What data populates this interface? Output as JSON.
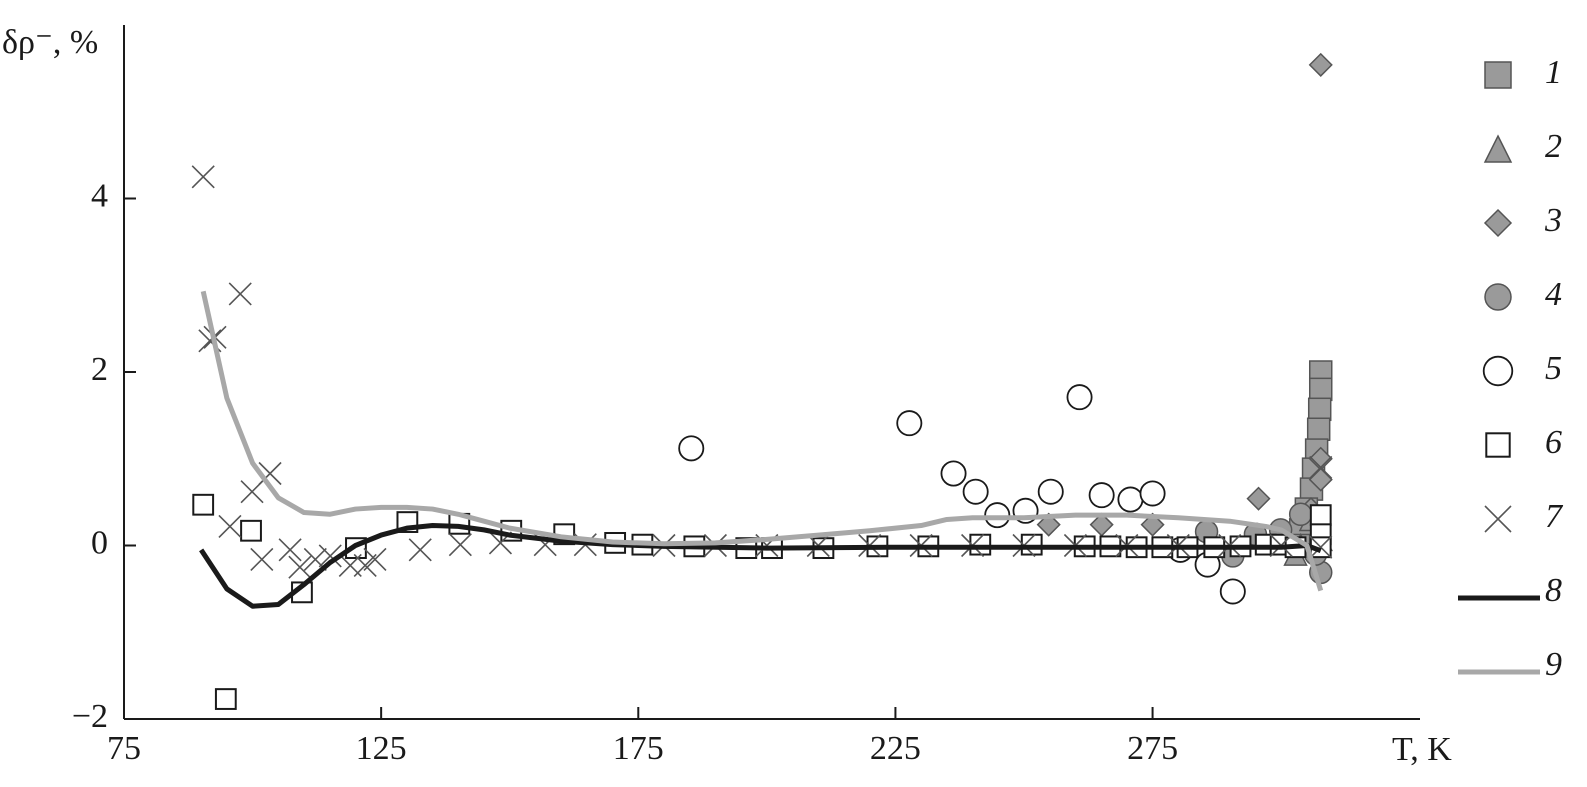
{
  "chart_data": {
    "type": "scatter",
    "x_label": "T, K",
    "y_label": "δρ⁻, %",
    "xlim": [
      75,
      327
    ],
    "ylim": [
      -2,
      6
    ],
    "xticks": [
      75,
      125,
      175,
      225,
      275
    ],
    "yticks": [
      {
        "value": -2,
        "label": "−2"
      },
      0,
      2,
      4
    ],
    "legend": "right",
    "series": [
      {
        "name": "1",
        "marker": "square",
        "color": "#9a9a9a",
        "x": [
          307.7,
          307.7,
          307.5,
          307.3,
          306.9,
          306.3,
          305.9,
          304.9,
          303.8,
          303.4
        ],
        "values": [
          2.0,
          1.8,
          1.57,
          1.34,
          1.1,
          0.88,
          0.65,
          0.42,
          0.18,
          0.0
        ]
      },
      {
        "name": "2",
        "marker": "triangle",
        "color": "#9a9a9a",
        "x": [
          302.8,
          303.8,
          305.8,
          307.7
        ],
        "values": [
          -0.1,
          0.0,
          0.3,
          0.07
        ]
      },
      {
        "name": "3",
        "marker": "diamond",
        "color": "#9a9a9a",
        "x": [
          307.7,
          254.8,
          265.1,
          275.0,
          295.6,
          307.7,
          307.7,
          305.8
        ],
        "values": [
          5.54,
          0.24,
          0.24,
          0.24,
          0.54,
          1.0,
          0.76,
          0.42
        ]
      },
      {
        "name": "4",
        "marker": "circle",
        "color": "#9a9a9a",
        "x": [
          285.5,
          290.6,
          295.0,
          299.9,
          303.8,
          307.7,
          306.7
        ],
        "values": [
          0.16,
          -0.12,
          0.13,
          0.18,
          0.36,
          -0.31,
          -0.1
        ]
      },
      {
        "name": "5",
        "marker": "open-circle",
        "color": "#ffffff",
        "x": [
          185.3,
          227.7,
          236.3,
          240.6,
          244.8,
          250.3,
          255.2,
          260.8,
          265.1,
          270.7,
          275.0,
          280.4,
          285.7,
          290.6
        ],
        "values": [
          1.12,
          1.41,
          0.83,
          0.62,
          0.35,
          0.4,
          0.62,
          1.71,
          0.58,
          0.53,
          0.6,
          -0.05,
          -0.22,
          -0.53
        ]
      },
      {
        "name": "6",
        "marker": "open-square",
        "color": "#ffffff",
        "x": [
          90.4,
          94.8,
          99.7,
          109.6,
          120.1,
          130.1,
          140.2,
          150.3,
          160.6,
          170.5,
          175.8,
          185.9,
          196.0,
          201.0,
          211.0,
          221.5,
          231.4,
          241.5,
          251.5,
          261.8,
          266.8,
          271.9,
          276.9,
          281.8,
          287.0,
          292.1,
          297.0,
          299.9,
          302.8,
          307.7,
          307.7,
          307.7
        ],
        "values": [
          0.47,
          -1.77,
          0.17,
          -0.54,
          -0.03,
          0.27,
          0.25,
          0.17,
          0.13,
          0.03,
          0.01,
          -0.01,
          -0.03,
          -0.03,
          -0.03,
          -0.01,
          -0.01,
          0.01,
          0.01,
          -0.01,
          -0.01,
          -0.02,
          -0.02,
          -0.02,
          -0.02,
          -0.01,
          0.01,
          0.01,
          -0.02,
          0.35,
          0.13,
          -0.02
        ]
      },
      {
        "name": "7",
        "marker": "x",
        "color": "#555555",
        "x": [
          90.4,
          97.6,
          91.7,
          92.7,
          99.9,
          103.4,
          95.6,
          101.8,
          107.3,
          109.2,
          112.2,
          115.1,
          119.0,
          121.9,
          123.8,
          132.6,
          140.4,
          148.2,
          156.9,
          164.7,
          180,
          190,
          200,
          210,
          220,
          230,
          240,
          250,
          260,
          270,
          280,
          290,
          300,
          307.7,
          307.7
        ],
        "values": [
          4.25,
          2.9,
          2.36,
          2.4,
          0.62,
          0.83,
          0.22,
          -0.16,
          -0.05,
          -0.25,
          -0.16,
          -0.12,
          -0.23,
          -0.23,
          -0.16,
          -0.05,
          0.01,
          0.03,
          0.01,
          0.01,
          0,
          0,
          0,
          0,
          0,
          0,
          0,
          0,
          0,
          0,
          0,
          0,
          0,
          -0.02,
          0.9
        ]
      },
      {
        "name": "8",
        "marker": "line",
        "color": "#1a1a1a",
        "x": [
          90,
          95,
          100,
          105,
          110,
          115,
          120,
          125,
          130,
          135,
          140,
          145,
          150,
          160,
          170,
          180,
          200,
          225,
          250,
          275,
          300,
          305,
          307.7
        ],
        "values": [
          -0.05,
          -0.5,
          -0.7,
          -0.68,
          -0.45,
          -0.2,
          0,
          0.12,
          0.2,
          0.23,
          0.22,
          0.18,
          0.12,
          0.05,
          0.01,
          -0.01,
          -0.03,
          -0.02,
          -0.02,
          -0.02,
          -0.02,
          0,
          -0.06
        ]
      },
      {
        "name": "9",
        "marker": "line",
        "color": "#a8a8a8",
        "x": [
          90.4,
          95,
          100,
          105,
          110,
          115,
          120,
          125,
          130,
          135,
          140,
          145,
          150,
          160,
          170,
          180,
          190,
          200,
          210,
          220,
          230,
          235,
          240,
          250,
          260,
          270,
          280,
          290,
          297,
          300,
          305,
          307.7
        ],
        "values": [
          2.93,
          1.7,
          0.95,
          0.55,
          0.38,
          0.36,
          0.42,
          0.44,
          0.44,
          0.42,
          0.36,
          0.28,
          0.2,
          0.1,
          0.04,
          0.02,
          0.03,
          0.07,
          0.12,
          0.17,
          0.23,
          0.3,
          0.32,
          0.32,
          0.35,
          0.35,
          0.32,
          0.28,
          0.22,
          0.18,
          0,
          -0.52
        ]
      }
    ]
  }
}
